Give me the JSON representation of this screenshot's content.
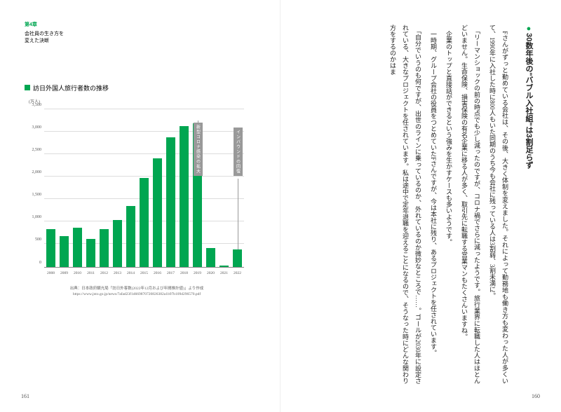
{
  "left": {
    "chapter_label": "第4章",
    "chapter_sub_line1": "会社員の生き方を",
    "chapter_sub_line2": "変えた決断",
    "page_number": "161",
    "chart": {
      "type": "bar",
      "title": "訪日外国人旅行者数の推移",
      "y_unit": "(万人)",
      "years": [
        "2008",
        "2009",
        "2010",
        "2011",
        "2012",
        "2013",
        "2014",
        "2015",
        "2016",
        "2017",
        "2018",
        "2019",
        "2020",
        "2021",
        "2022"
      ],
      "values": [
        835,
        679,
        861,
        622,
        836,
        1036,
        1341,
        1974,
        2404,
        2869,
        3119,
        3188,
        412,
        25,
        383
      ],
      "ylim_max": 3500,
      "ytick_step": 500,
      "yticks": [
        "0",
        "500",
        "1,000",
        "1,500",
        "2,000",
        "2,500",
        "3,000",
        "3,500"
      ],
      "bar_color": "#00a651",
      "grid_color": "#dddddd",
      "axis_color": "#888888",
      "callouts": [
        {
          "text": "新型コロナ感染の拡大",
          "year_index": 11
        },
        {
          "text": "インバウンドの回復",
          "year_index": 14
        }
      ],
      "source_line1": "出典：日本政府観光局「訪日外客数(2022年12月および年間推計値)」より作成",
      "source_line2": "https://www.jnto.go.jp/news/7afad23f1d669870720826382a1b97b109d296570.pdf"
    }
  },
  "right": {
    "page_number": "160",
    "heading": "30数年後の\"バブル入社組\"は3割足らず",
    "paragraphs": [
      "Fさんがずっと勤めている会社は、その後、大きく体制を変えました。それによって勤務地も働き方も変わった人が多くいて、1990年に入社した時に800人もいた同期のうち今も会社に残っている人は3割弱、3割未満に。",
      "「リーマンショックの前の時点でも少し減ったのですが、コロナ禍でさらに減ったようです。旅行業界に転職した人はほとんどいません。生命保険、損害保険の有名企業に移る人が多く、取引先に転職する営業マンもたくさんいますね。",
      "企業のトップと直接話ができるという強みを生かすケースも多いようです。",
      "一時期、グループ会社の役員をつとめていたFさんですが、今は本社に残り、あるプロジェクトを任されています。",
      "「自分でいうのも何ですが、出世のラインに乗っているのか、外れているのか微妙なところで……。ゴールが2030年に設定されている、大きなプロジェクトを任されています。私は途中で定年退職を迎えることになるので、そうなった時にどんな関わり方をするのかはま"
    ]
  }
}
